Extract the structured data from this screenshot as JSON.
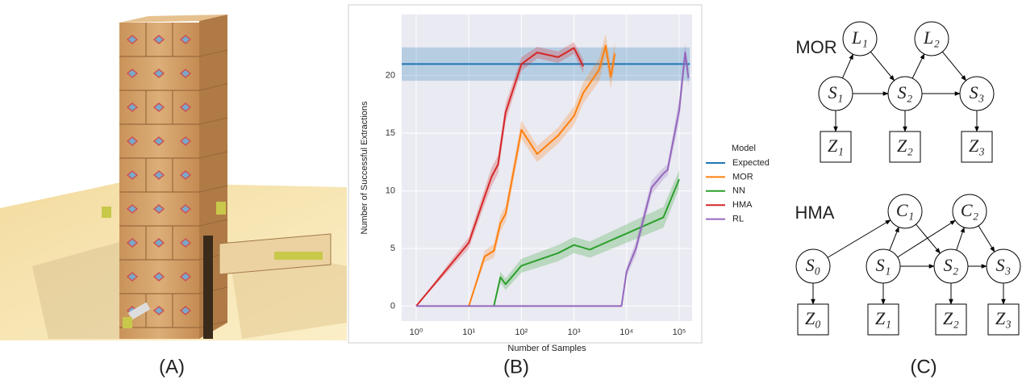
{
  "panels": {
    "a": "(A)",
    "b": "(B)",
    "c": "(C)"
  },
  "chart_data": {
    "type": "line",
    "xlabel": "Number of Samples",
    "ylabel": "Number of Successful Extractions",
    "xlog": true,
    "grid": true,
    "xlim": [
      0.53,
      176000
    ],
    "ylim": [
      -1.3,
      25.3
    ],
    "xticks": [
      {
        "value": 1,
        "label": "10⁰"
      },
      {
        "value": 10,
        "label": "10¹"
      },
      {
        "value": 100,
        "label": "10²"
      },
      {
        "value": 1000,
        "label": "10³"
      },
      {
        "value": 10000,
        "label": "10⁴"
      },
      {
        "value": 100000,
        "label": "10⁵"
      }
    ],
    "yticks": [
      0,
      5,
      10,
      15,
      20
    ],
    "legend": {
      "title": "Model",
      "position": "right"
    },
    "series": [
      {
        "name": "Expected",
        "color": "#1f77b4",
        "x": [
          0.53,
          160000
        ],
        "values": [
          21,
          21
        ],
        "error": [
          1.45,
          1.45
        ]
      },
      {
        "name": "MOR",
        "color": "#ff7f0e",
        "x": [
          10,
          20,
          30,
          40,
          50,
          100,
          200,
          500,
          1000,
          1500,
          3000,
          4000,
          5000,
          6000
        ],
        "values": [
          0,
          4.3,
          4.8,
          7.2,
          8,
          15.3,
          13.2,
          14.8,
          16.5,
          18.5,
          20.5,
          22.6,
          19.9,
          21.9
        ],
        "error": [
          0,
          0.5,
          0.6,
          0.7,
          0.7,
          0.8,
          0.7,
          0.7,
          0.8,
          0.9,
          1,
          1,
          1,
          1
        ]
      },
      {
        "name": "NN",
        "color": "#2ca02c",
        "x": [
          30,
          40,
          50,
          100,
          500,
          1000,
          2000,
          10000,
          50000,
          100000
        ],
        "values": [
          0,
          2.5,
          1.9,
          3.5,
          4.6,
          5.3,
          4.9,
          6.3,
          7.7,
          11
        ],
        "error": [
          0,
          0.5,
          0.5,
          0.6,
          0.7,
          0.7,
          0.7,
          0.8,
          0.9,
          0.8
        ]
      },
      {
        "name": "HMA",
        "color": "#d62728",
        "x": [
          1,
          10,
          20,
          27,
          36,
          50,
          100,
          200,
          500,
          1000,
          1500
        ],
        "values": [
          0,
          5.5,
          9.5,
          11.2,
          12.3,
          16.8,
          21,
          22,
          21.6,
          22.4,
          20.8
        ],
        "error": [
          0,
          0.5,
          0.7,
          0.8,
          0.8,
          0.8,
          0.6,
          0.5,
          0.5,
          0.5,
          0.6
        ]
      },
      {
        "name": "RL",
        "color": "#9467bd",
        "x": [
          1,
          8000,
          10000,
          15000,
          30000,
          50000,
          60000,
          100000,
          130000,
          150000
        ],
        "values": [
          0,
          0,
          3,
          5,
          10.3,
          11.5,
          11.8,
          17,
          22,
          19.8
        ],
        "error": [
          0,
          0,
          0.4,
          0.6,
          0.6,
          0.5,
          0.5,
          1,
          0.8,
          0.8
        ]
      }
    ]
  },
  "diagrams": [
    {
      "title": "MOR",
      "nodes": [
        {
          "label": "L₁",
          "shape": "circle"
        },
        {
          "label": "L₂",
          "shape": "circle"
        },
        {
          "label": "S₁",
          "shape": "circle"
        },
        {
          "label": "S₂",
          "shape": "circle"
        },
        {
          "label": "S₃",
          "shape": "circle"
        },
        {
          "label": "Z₁",
          "shape": "box"
        },
        {
          "label": "Z₂",
          "shape": "box"
        },
        {
          "label": "Z₃",
          "shape": "box"
        }
      ]
    },
    {
      "title": "HMA",
      "nodes": [
        {
          "label": "C₁",
          "shape": "circle"
        },
        {
          "label": "C₂",
          "shape": "circle"
        },
        {
          "label": "S₀",
          "shape": "circle"
        },
        {
          "label": "S₁",
          "shape": "circle"
        },
        {
          "label": "S₂",
          "shape": "circle"
        },
        {
          "label": "S₃",
          "shape": "circle"
        },
        {
          "label": "Z₀",
          "shape": "box"
        },
        {
          "label": "Z₁",
          "shape": "box"
        },
        {
          "label": "Z₂",
          "shape": "box"
        },
        {
          "label": "Z₃",
          "shape": "box"
        }
      ]
    }
  ]
}
